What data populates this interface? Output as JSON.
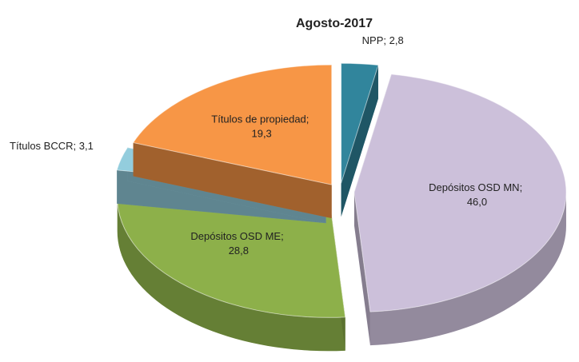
{
  "chart_data": {
    "type": "pie",
    "title": "Agosto-2017",
    "categories": [
      "NPP",
      "Depósitos OSD MN",
      "Depósitos OSD ME",
      "Títulos BCCR",
      "Títulos de propiedad"
    ],
    "values": [
      2.8,
      46.0,
      28.8,
      3.1,
      19.3
    ],
    "value_labels": [
      "2,8",
      "46,0",
      "28,8",
      "3,1",
      "19,3"
    ],
    "label_separator": "; ",
    "colors": [
      "#31859c",
      "#ccc0da",
      "#8db04a",
      "#93cddd",
      "#f79646"
    ]
  }
}
